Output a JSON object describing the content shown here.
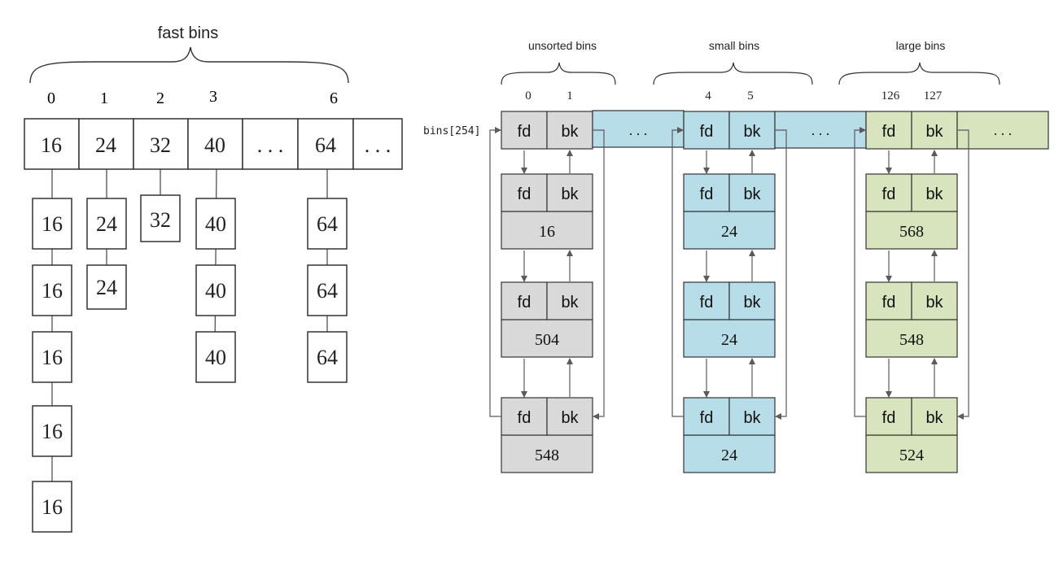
{
  "fast_bins": {
    "title": "fast bins",
    "indices": [
      "0",
      "1",
      "2",
      "3",
      "6"
    ],
    "heads": [
      "16",
      "24",
      "32",
      "40",
      ". . .",
      "64",
      ". . ."
    ],
    "chains": [
      [
        "16",
        "16",
        "16",
        "16",
        "16"
      ],
      [
        "24",
        "24"
      ],
      [
        "32"
      ],
      [
        "40",
        "40",
        "40"
      ],
      [
        "64",
        "64",
        "64"
      ]
    ]
  },
  "bins_label": "bins[254]",
  "field_labels": {
    "fd": "fd",
    "bk": "bk"
  },
  "ellipsis": ". . .",
  "groups": [
    {
      "title": "unsorted bins",
      "indices": [
        "0",
        "1"
      ],
      "color": "#d9d9d9",
      "chunk_sizes": [
        "16",
        "504",
        "548"
      ]
    },
    {
      "title": "small bins",
      "indices": [
        "4",
        "5"
      ],
      "color": "#b7dde8",
      "chunk_sizes": [
        "24",
        "24",
        "24"
      ]
    },
    {
      "title": "large bins",
      "indices": [
        "126",
        "127"
      ],
      "color": "#d7e4bd",
      "chunk_sizes": [
        "568",
        "548",
        "524"
      ]
    }
  ],
  "colors": {
    "line": "#5a5a5a",
    "box_border": "#3a3a3a",
    "unsorted": "#d9d9d9",
    "small": "#b7dde8",
    "large": "#d7e4bd"
  }
}
